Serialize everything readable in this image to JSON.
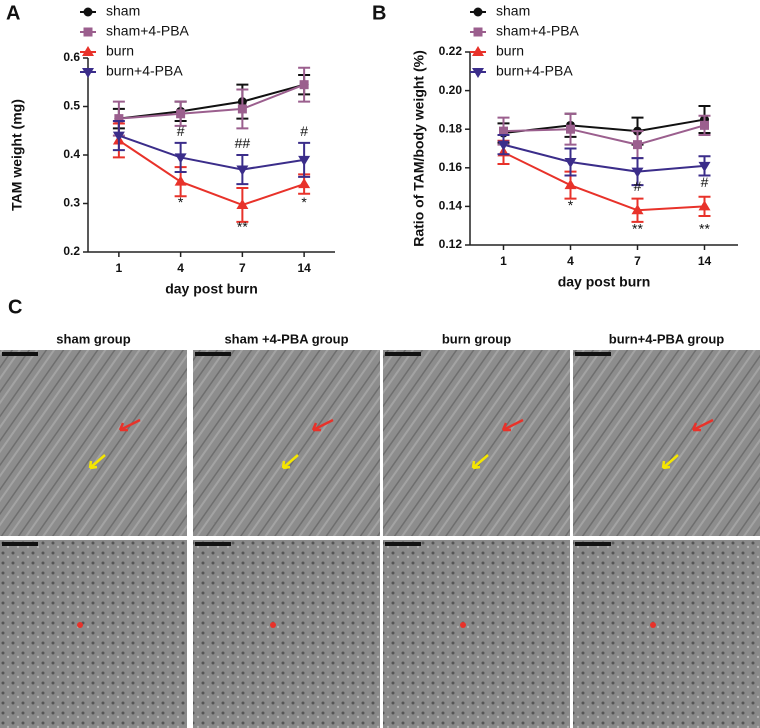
{
  "chart_data": [
    {
      "type": "line",
      "panel_label": "A",
      "y_label": "TAM weight (mg)",
      "x_label": "day post burn",
      "categories": [
        "1",
        "4",
        "7",
        "14"
      ],
      "ylim": [
        0.2,
        0.6
      ],
      "yticks": [
        0.2,
        0.3,
        0.4,
        0.5,
        0.6
      ],
      "series": [
        {
          "name": "sham",
          "color": "#111111",
          "marker": "circle",
          "values": [
            0.475,
            0.49,
            0.51,
            0.545
          ],
          "errors": [
            0.02,
            0.02,
            0.035,
            0.02
          ]
        },
        {
          "name": "sham+4-PBA",
          "color": "#9b5f8e",
          "marker": "square",
          "values": [
            0.475,
            0.485,
            0.495,
            0.545
          ],
          "errors": [
            0.035,
            0.025,
            0.04,
            0.035
          ]
        },
        {
          "name": "burn",
          "color": "#e8322a",
          "marker": "triangle-up",
          "values": [
            0.43,
            0.345,
            0.297,
            0.34
          ],
          "errors": [
            0.035,
            0.03,
            0.035,
            0.02
          ]
        },
        {
          "name": "burn+4-PBA",
          "color": "#3b2d8a",
          "marker": "triangle-down",
          "values": [
            0.44,
            0.395,
            0.37,
            0.39
          ],
          "errors": [
            0.03,
            0.03,
            0.03,
            0.035
          ]
        }
      ],
      "annotations": [
        {
          "text": "#",
          "category": 1,
          "y": 0.447
        },
        {
          "text": "##",
          "category": 2,
          "y": 0.422
        },
        {
          "text": "#",
          "category": 3,
          "y": 0.447
        },
        {
          "text": "*",
          "category": 1,
          "y": 0.3
        },
        {
          "text": "**",
          "category": 2,
          "y": 0.25
        },
        {
          "text": "*",
          "category": 3,
          "y": 0.3
        }
      ]
    },
    {
      "type": "line",
      "panel_label": "B",
      "y_label": "Ratio of TAM/body weight (%)",
      "x_label": "day post burn",
      "categories": [
        "1",
        "4",
        "7",
        "14"
      ],
      "ylim": [
        0.12,
        0.22
      ],
      "yticks": [
        0.12,
        0.14,
        0.16,
        0.18,
        {
          "value": 0.2,
          "label": "0.20"
        },
        0.22
      ],
      "series": [
        {
          "name": "sham",
          "color": "#111111",
          "marker": "circle",
          "values": [
            0.178,
            0.182,
            0.179,
            0.185
          ],
          "errors": [
            0.005,
            0.006,
            0.007,
            0.007
          ]
        },
        {
          "name": "sham+4-PBA",
          "color": "#9b5f8e",
          "marker": "square",
          "values": [
            0.179,
            0.18,
            0.172,
            0.182
          ],
          "errors": [
            0.007,
            0.008,
            0.007,
            0.005
          ]
        },
        {
          "name": "burn",
          "color": "#e8322a",
          "marker": "triangle-up",
          "values": [
            0.168,
            0.151,
            0.138,
            0.14
          ],
          "errors": [
            0.006,
            0.007,
            0.006,
            0.005
          ]
        },
        {
          "name": "burn+4-PBA",
          "color": "#3b2d8a",
          "marker": "triangle-down",
          "values": [
            0.172,
            0.163,
            0.158,
            0.161
          ],
          "errors": [
            0.005,
            0.007,
            0.007,
            0.005
          ]
        }
      ],
      "annotations": [
        {
          "text": "*",
          "category": 1,
          "y": 0.14
        },
        {
          "text": "#",
          "category": 2,
          "y": 0.15
        },
        {
          "text": "**",
          "category": 2,
          "y": 0.128
        },
        {
          "text": "#",
          "category": 3,
          "y": 0.152
        },
        {
          "text": "**",
          "category": 3,
          "y": 0.128
        }
      ]
    }
  ],
  "panel_c": {
    "label": "C",
    "groups": [
      "sham group",
      "sham +4-PBA group",
      "burn group",
      "burn+4-PBA group"
    ]
  }
}
